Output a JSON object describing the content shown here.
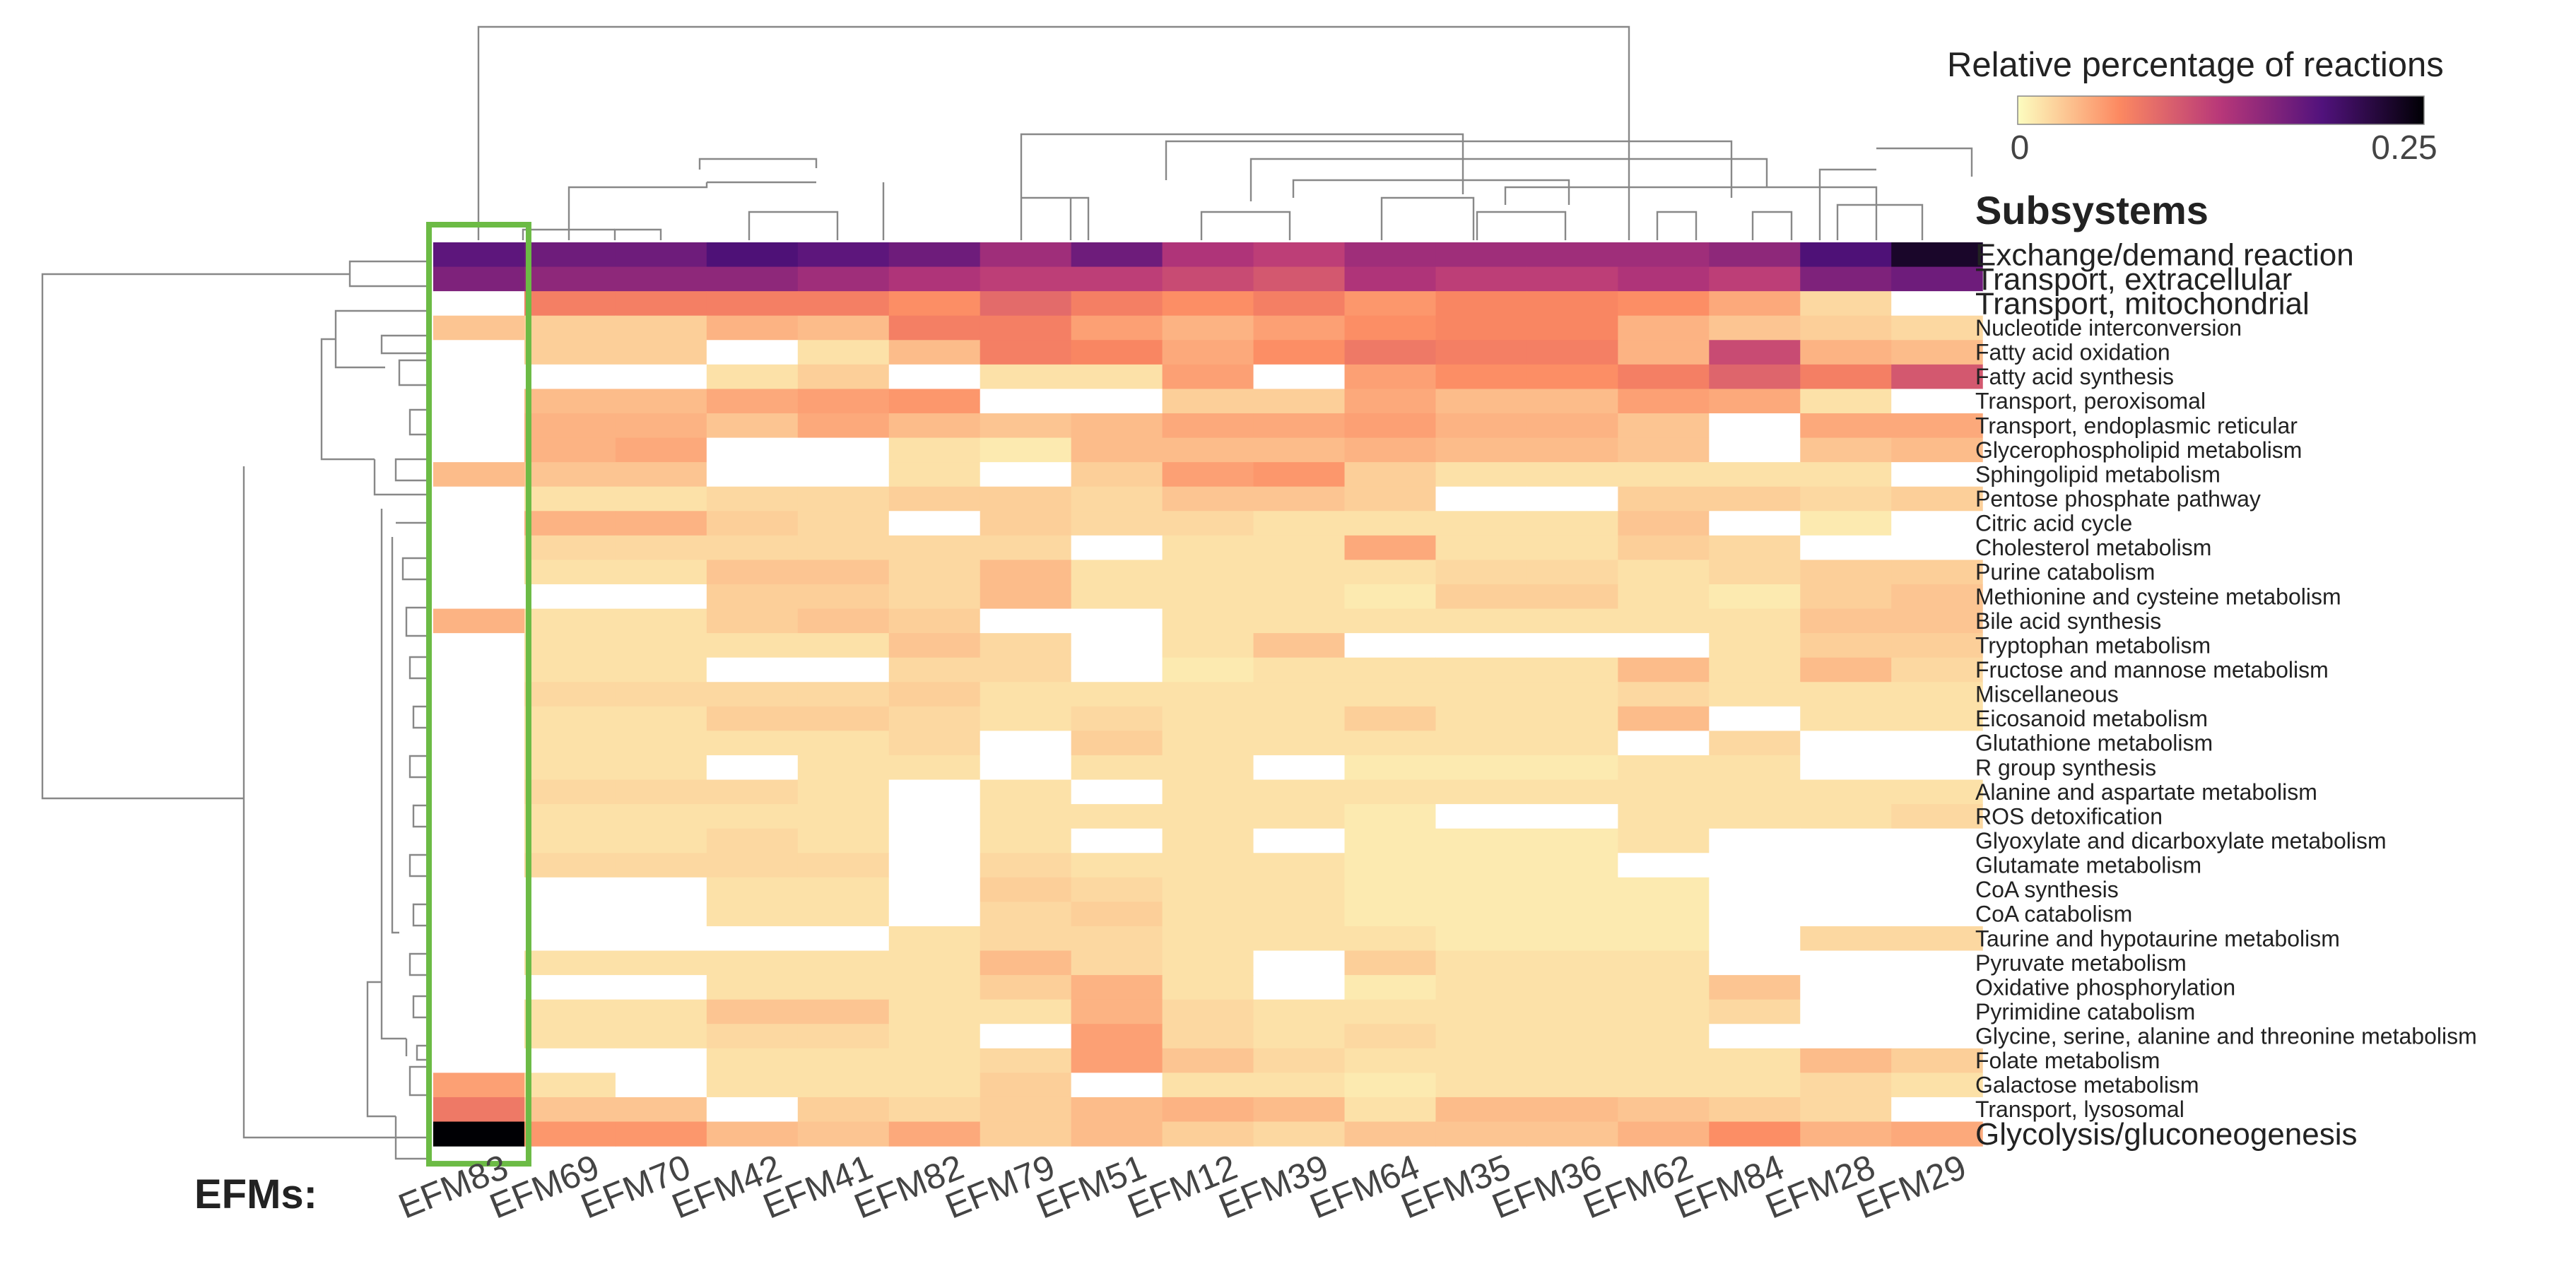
{
  "chart_data": {
    "type": "heatmap",
    "title": "Relative percentage of reactions",
    "legend": {
      "title": "Relative percentage of reactions",
      "min_label": "0",
      "max_label": "0.25",
      "vmin": 0,
      "vmax": 0.25,
      "placement": "top-right"
    },
    "row_header": "Subsystems",
    "col_header": "EFMs:",
    "highlighted_column": "EFM83",
    "highlight_color": "#6cbb45",
    "colormap": [
      "#fcfdbf",
      "#fc8961",
      "#b73779",
      "#51127c",
      "#000004"
    ],
    "columns": [
      "EFM83",
      "EFM69",
      "EFM70",
      "EFM42",
      "EFM41",
      "EFM82",
      "EFM79",
      "EFM51",
      "EFM12",
      "EFM39",
      "EFM64",
      "EFM35",
      "EFM36",
      "EFM62",
      "EFM84",
      "EFM28",
      "EFM29"
    ],
    "rows": [
      "Exchange/demand reaction",
      "Transport, extracellular",
      "Transport, mitochondrial",
      "Nucleotide interconversion",
      "Fatty acid oxidation",
      "Fatty acid synthesis",
      "Transport, peroxisomal",
      "Transport, endoplasmic reticular",
      "Glycerophospholipid metabolism",
      "Sphingolipid metabolism",
      "Pentose phosphate pathway",
      "Citric acid cycle",
      "Cholesterol metabolism",
      "Purine catabolism",
      "Methionine and cysteine metabolism",
      "Bile acid synthesis",
      "Tryptophan metabolism",
      "Fructose and mannose metabolism",
      "Miscellaneous",
      "Eicosanoid metabolism",
      "Glutathione metabolism",
      "R group synthesis",
      "Alanine and aspartate metabolism",
      "ROS detoxification",
      "Glyoxylate and dicarboxylate metabolism",
      "Glutamate metabolism",
      "CoA synthesis",
      "CoA catabolism",
      "Taurine and hypotaurine metabolism",
      "Pyruvate metabolism",
      "Oxidative phosphorylation",
      "Pyrimidine catabolism",
      "Glycine, serine, alanine and threonine metabolism",
      "Folate metabolism",
      "Galactose metabolism",
      "Transport, lysosomal",
      "Glycolysis/gluconeogenesis"
    ],
    "large_rows": [
      "Exchange/demand reaction",
      "Transport, extracellular",
      "Transport, mitochondrial",
      "Glycolysis/gluconeogenesis"
    ],
    "values": [
      [
        0.18,
        0.17,
        0.17,
        0.19,
        0.18,
        0.17,
        0.14,
        0.17,
        0.13,
        0.12,
        0.14,
        0.14,
        0.14,
        0.14,
        0.15,
        0.19,
        0.23
      ],
      [
        0.16,
        0.15,
        0.15,
        0.15,
        0.14,
        0.13,
        0.12,
        0.12,
        0.11,
        0.1,
        0.13,
        0.12,
        0.12,
        0.13,
        0.12,
        0.16,
        0.17
      ],
      [
        0,
        0.07,
        0.07,
        0.07,
        0.07,
        0.06,
        0.085,
        0.07,
        0.06,
        0.07,
        0.055,
        0.065,
        0.065,
        0.06,
        0.045,
        0.02,
        0
      ],
      [
        0.03,
        0.025,
        0.025,
        0.04,
        0.035,
        0.07,
        0.07,
        0.05,
        0.04,
        0.05,
        0.06,
        0.065,
        0.065,
        0.04,
        0.03,
        0.025,
        0.02
      ],
      [
        0,
        0.025,
        0.025,
        0,
        0.015,
        0.035,
        0.07,
        0.065,
        0.045,
        0.06,
        0.075,
        0.07,
        0.07,
        0.04,
        0.11,
        0.04,
        0.035
      ],
      [
        0,
        0,
        0,
        0.015,
        0.025,
        0,
        0.015,
        0.015,
        0.05,
        0,
        0.05,
        0.06,
        0.06,
        0.07,
        0.09,
        0.07,
        0.1
      ],
      [
        0,
        0.035,
        0.035,
        0.045,
        0.05,
        0.055,
        0,
        0,
        0.025,
        0.025,
        0.045,
        0.035,
        0.035,
        0.05,
        0.045,
        0.015,
        0
      ],
      [
        0,
        0.04,
        0.04,
        0.03,
        0.045,
        0.035,
        0.03,
        0.035,
        0.045,
        0.045,
        0.05,
        0.04,
        0.04,
        0.03,
        0,
        0.045,
        0.045
      ],
      [
        0,
        0.04,
        0.045,
        0,
        0,
        0.015,
        0.01,
        0.035,
        0.035,
        0.035,
        0.04,
        0.035,
        0.035,
        0.03,
        0,
        0.03,
        0.035
      ],
      [
        0.035,
        0.03,
        0.03,
        0,
        0,
        0.015,
        0,
        0.025,
        0.05,
        0.055,
        0.025,
        0.015,
        0.015,
        0.015,
        0.015,
        0.015,
        0
      ],
      [
        0,
        0.015,
        0.015,
        0.02,
        0.02,
        0.025,
        0.025,
        0.02,
        0.03,
        0.03,
        0.025,
        0,
        0,
        0.025,
        0.025,
        0.02,
        0.025
      ],
      [
        0,
        0.04,
        0.04,
        0.025,
        0.02,
        0,
        0.025,
        0.02,
        0.02,
        0.015,
        0.015,
        0.015,
        0.015,
        0.03,
        0,
        0.01,
        0
      ],
      [
        0,
        0.02,
        0.02,
        0.02,
        0.02,
        0.02,
        0.02,
        0,
        0.015,
        0.015,
        0.045,
        0.015,
        0.015,
        0.025,
        0.02,
        0,
        0
      ],
      [
        0,
        0.015,
        0.015,
        0.03,
        0.03,
        0.02,
        0.035,
        0.015,
        0.015,
        0.015,
        0.015,
        0.02,
        0.02,
        0.015,
        0.02,
        0.025,
        0.025
      ],
      [
        0,
        0,
        0,
        0.025,
        0.025,
        0.02,
        0.035,
        0.015,
        0.015,
        0.015,
        0.01,
        0.025,
        0.025,
        0.015,
        0.01,
        0.025,
        0.03
      ],
      [
        0.04,
        0.015,
        0.015,
        0.025,
        0.03,
        0.025,
        0,
        0,
        0.015,
        0.015,
        0.015,
        0.015,
        0.015,
        0.015,
        0.015,
        0.03,
        0.03
      ],
      [
        0,
        0.015,
        0.015,
        0.015,
        0.015,
        0.03,
        0.02,
        0,
        0.015,
        0.03,
        0,
        0,
        0,
        0,
        0.015,
        0.025,
        0.025
      ],
      [
        0,
        0.015,
        0.015,
        0,
        0,
        0.02,
        0.02,
        0,
        0.01,
        0.015,
        0.015,
        0.015,
        0.015,
        0.035,
        0.015,
        0.035,
        0.02
      ],
      [
        0,
        0.02,
        0.02,
        0.02,
        0.02,
        0.025,
        0.015,
        0.015,
        0.015,
        0.015,
        0.015,
        0.015,
        0.015,
        0.02,
        0.015,
        0.015,
        0.015
      ],
      [
        0,
        0.015,
        0.015,
        0.025,
        0.025,
        0.02,
        0.015,
        0.02,
        0.015,
        0.015,
        0.025,
        0.015,
        0.015,
        0.035,
        0,
        0.015,
        0.015
      ],
      [
        0,
        0.015,
        0.015,
        0.015,
        0.015,
        0.02,
        0,
        0.025,
        0.015,
        0.015,
        0.015,
        0.015,
        0.015,
        0,
        0.02,
        0,
        0
      ],
      [
        0,
        0.015,
        0.015,
        0,
        0.015,
        0.015,
        0,
        0.015,
        0.015,
        0,
        0.01,
        0.01,
        0.01,
        0.015,
        0.015,
        0,
        0
      ],
      [
        0,
        0.02,
        0.02,
        0.02,
        0.015,
        0,
        0.015,
        0,
        0.015,
        0.015,
        0.015,
        0.015,
        0.015,
        0.015,
        0.015,
        0.015,
        0.015
      ],
      [
        0,
        0.015,
        0.015,
        0.015,
        0.015,
        0,
        0.015,
        0.015,
        0.015,
        0.015,
        0.01,
        0,
        0,
        0.015,
        0.015,
        0.015,
        0.02
      ],
      [
        0,
        0.015,
        0.015,
        0.02,
        0.015,
        0,
        0.015,
        0,
        0.015,
        0,
        0.01,
        0.01,
        0.01,
        0.015,
        0,
        0,
        0
      ],
      [
        0,
        0.02,
        0.02,
        0.02,
        0.02,
        0,
        0.02,
        0.015,
        0.015,
        0.015,
        0.01,
        0.01,
        0.01,
        0,
        0,
        0,
        0
      ],
      [
        0,
        0,
        0,
        0.015,
        0.015,
        0,
        0.025,
        0.02,
        0.015,
        0.015,
        0.01,
        0.01,
        0.01,
        0.01,
        0,
        0,
        0
      ],
      [
        0,
        0,
        0,
        0.015,
        0.015,
        0,
        0.02,
        0.025,
        0.015,
        0.015,
        0.01,
        0.01,
        0.01,
        0.01,
        0,
        0,
        0
      ],
      [
        0,
        0,
        0,
        0,
        0,
        0.015,
        0.02,
        0.02,
        0.015,
        0.015,
        0.015,
        0.01,
        0.01,
        0.01,
        0,
        0.02,
        0.02
      ],
      [
        0,
        0.015,
        0.015,
        0.015,
        0.015,
        0.015,
        0.035,
        0.02,
        0.015,
        0,
        0.025,
        0.015,
        0.015,
        0.015,
        0,
        0,
        0
      ],
      [
        0,
        0,
        0,
        0.015,
        0.015,
        0.015,
        0.025,
        0.04,
        0.015,
        0,
        0.01,
        0.015,
        0.015,
        0.015,
        0.03,
        0,
        0
      ],
      [
        0,
        0.015,
        0.015,
        0.03,
        0.03,
        0.015,
        0.015,
        0.04,
        0.02,
        0.015,
        0.015,
        0.015,
        0.015,
        0.015,
        0.02,
        0,
        0
      ],
      [
        0,
        0.015,
        0.015,
        0.02,
        0.02,
        0.015,
        0,
        0.05,
        0.02,
        0.015,
        0.02,
        0.015,
        0.015,
        0.015,
        0,
        0,
        0
      ],
      [
        0,
        0,
        0,
        0.015,
        0.015,
        0.015,
        0.02,
        0.05,
        0.03,
        0.02,
        0.015,
        0.015,
        0.015,
        0.015,
        0.015,
        0.035,
        0.025
      ],
      [
        0.05,
        0.015,
        0,
        0.015,
        0.015,
        0.015,
        0.025,
        0,
        0.015,
        0.015,
        0.01,
        0.015,
        0.015,
        0.015,
        0.015,
        0.02,
        0.015
      ],
      [
        0.075,
        0.03,
        0.03,
        0,
        0.025,
        0.02,
        0.025,
        0.035,
        0.04,
        0.035,
        0.015,
        0.035,
        0.035,
        0.03,
        0.025,
        0.02,
        0
      ],
      [
        0.25,
        0.055,
        0.055,
        0.035,
        0.03,
        0.045,
        0.025,
        0.035,
        0.025,
        0.02,
        0.03,
        0.03,
        0.03,
        0.04,
        0.06,
        0.04,
        0.045
      ]
    ]
  }
}
